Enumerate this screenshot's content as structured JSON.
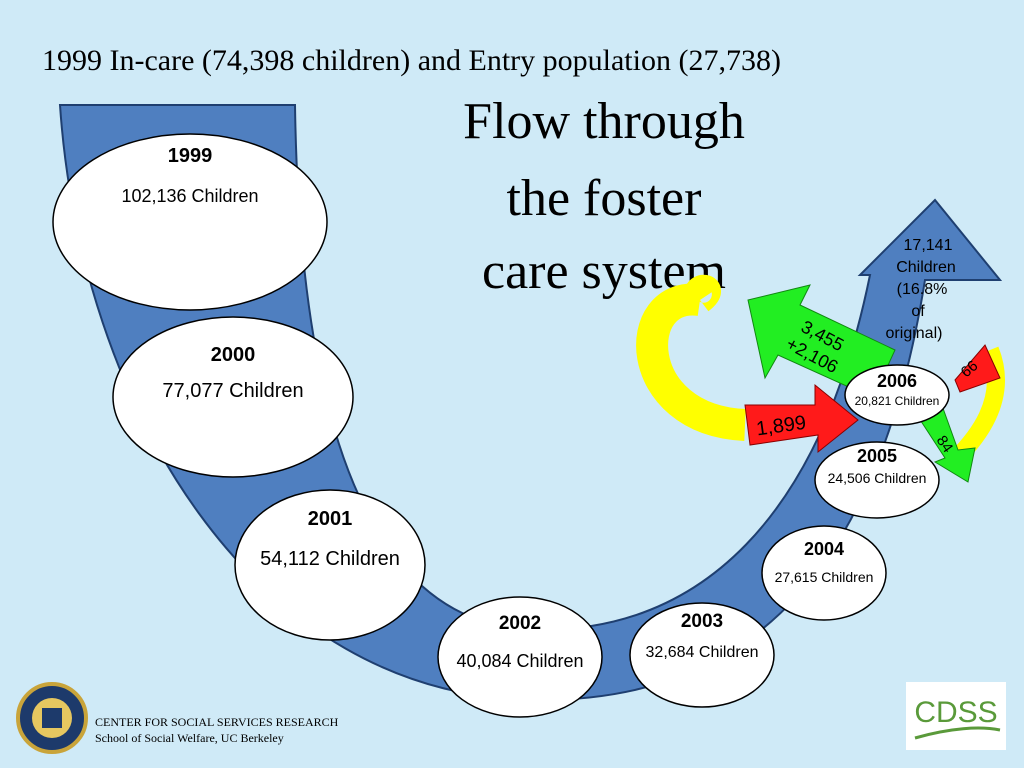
{
  "header": {
    "title": "1999 In-care (74,398 children) and Entry population (27,738)"
  },
  "main_title": {
    "lines": [
      "Flow through",
      "the foster",
      "care system"
    ]
  },
  "nodes": [
    {
      "year": "1999",
      "label": "102,136 Children"
    },
    {
      "year": "2000",
      "label": "77,077 Children"
    },
    {
      "year": "2001",
      "label": "54,112 Children"
    },
    {
      "year": "2002",
      "label": "40,084 Children"
    },
    {
      "year": "2003",
      "label": "32,684 Children"
    },
    {
      "year": "2004",
      "label": "27,615 Children"
    },
    {
      "year": "2005",
      "label": "24,506 Children"
    },
    {
      "year": "2006",
      "label": "20,821 Children"
    }
  ],
  "arrows": {
    "exit": {
      "lines": [
        "17,141",
        "Children",
        "(16.8%",
        "of",
        "original)"
      ]
    },
    "reentry": {
      "lines": [
        "3,455",
        "+2,106"
      ]
    },
    "entry": {
      "label": "1,899"
    },
    "small_red": {
      "label": "66"
    },
    "small_green": {
      "label": "84"
    }
  },
  "footer": {
    "org": "CENTER FOR SOCIAL SERVICES RESEARCH",
    "school": "School of Social Welfare, UC Berkeley",
    "logo": "CDSS"
  }
}
